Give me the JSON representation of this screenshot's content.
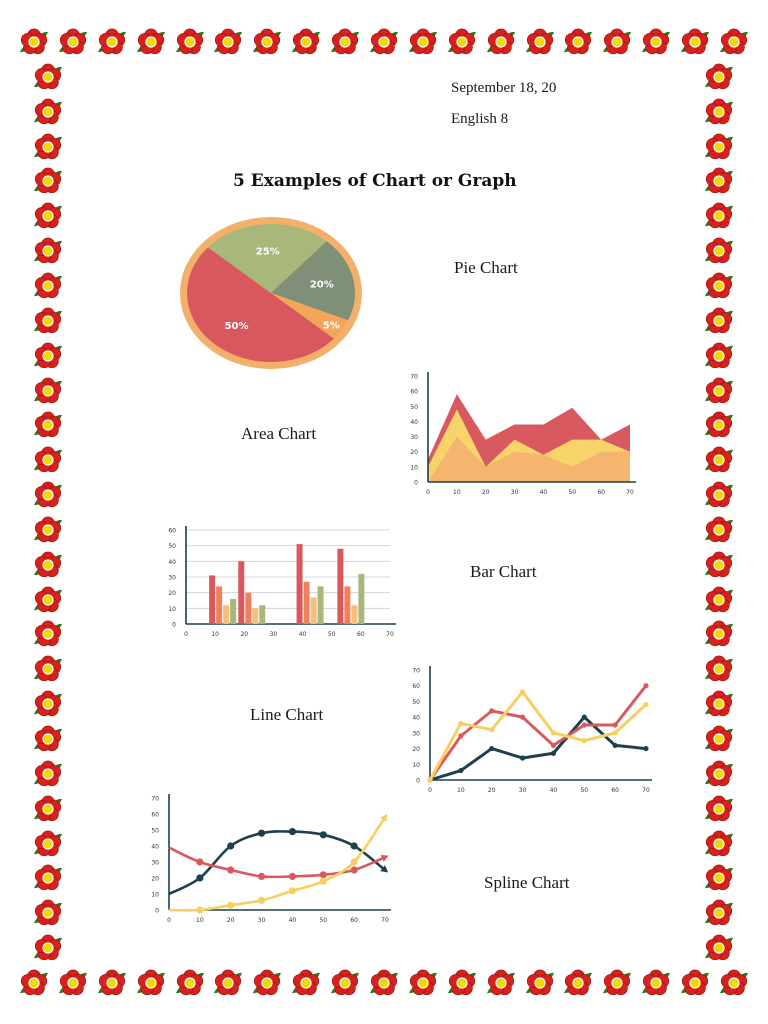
{
  "header": {
    "date": "September 18, 20",
    "course": "English 8",
    "title": "5 Examples of Chart or Graph"
  },
  "labels": {
    "pie": "Pie Chart",
    "area": "Area Chart",
    "bar": "Bar Chart",
    "line": "Line Chart",
    "spline": "Spline Chart"
  },
  "border": {
    "icon": "red-flower-icon",
    "petal_color": "#d8201c",
    "center_color": "#f5d800",
    "leaf_color": "#2f7a1f"
  },
  "chart_data": [
    {
      "type": "pie",
      "slices": [
        {
          "label": "50%",
          "value": 50,
          "color": "#d9585d"
        },
        {
          "label": "25%",
          "value": 25,
          "color": "#a7b87a"
        },
        {
          "label": "20%",
          "value": 20,
          "color": "#7f8f78"
        },
        {
          "label": "5%",
          "value": 5,
          "color": "#f5a55a"
        }
      ],
      "rim_color": "#f3b06a"
    },
    {
      "type": "area",
      "x": [
        0,
        10,
        20,
        30,
        40,
        50,
        60,
        70
      ],
      "ylim": [
        0,
        70
      ],
      "xticks": [
        "0",
        "10",
        "20",
        "30",
        "40",
        "50",
        "60",
        "70"
      ],
      "yticks": [
        "0",
        "10",
        "20",
        "30",
        "40",
        "50",
        "60",
        "70"
      ],
      "series": [
        {
          "color": "#d85a5f",
          "values": [
            15,
            58,
            28,
            38,
            38,
            49,
            28,
            38
          ]
        },
        {
          "color": "#f7d36a",
          "values": [
            10,
            48,
            10,
            28,
            18,
            28,
            28,
            20
          ]
        },
        {
          "color": "#f6b56e",
          "values": [
            0,
            30,
            10,
            20,
            18,
            10,
            20,
            20
          ]
        }
      ]
    },
    {
      "type": "bar",
      "categories": [
        "10",
        "20",
        "40",
        "50"
      ],
      "xticks": [
        "0",
        "10",
        "20",
        "30",
        "40",
        "50",
        "60",
        "70"
      ],
      "yticks": [
        "0",
        "10",
        "20",
        "30",
        "40",
        "50",
        "60"
      ],
      "ylim": [
        0,
        60
      ],
      "series": [
        {
          "color": "#d9585d",
          "values": [
            31,
            40,
            51,
            48
          ]
        },
        {
          "color": "#f07f5e",
          "values": [
            24,
            20,
            27,
            24
          ]
        },
        {
          "color": "#f7c07a",
          "values": [
            12,
            10,
            17,
            12
          ]
        },
        {
          "color": "#a7b87a",
          "values": [
            16,
            12,
            24,
            32
          ]
        }
      ]
    },
    {
      "type": "line",
      "x": [
        0,
        10,
        20,
        30,
        40,
        50,
        60,
        70
      ],
      "ylim": [
        0,
        70
      ],
      "xticks": [
        "0",
        "10",
        "20",
        "30",
        "40",
        "50",
        "60",
        "70"
      ],
      "yticks": [
        "0",
        "10",
        "20",
        "30",
        "40",
        "50",
        "60",
        "70"
      ],
      "series": [
        {
          "color": "#1f3e4e",
          "values": [
            0,
            6,
            20,
            14,
            17,
            40,
            22,
            20
          ]
        },
        {
          "color": "#d85a5f",
          "values": [
            0,
            28,
            44,
            40,
            22,
            35,
            35,
            60
          ]
        },
        {
          "color": "#f7cf5e",
          "values": [
            0,
            36,
            32,
            56,
            30,
            25,
            30,
            48
          ]
        }
      ]
    },
    {
      "type": "spline",
      "x": [
        0,
        10,
        20,
        30,
        40,
        50,
        60,
        70
      ],
      "ylim": [
        0,
        70
      ],
      "xticks": [
        "0",
        "10",
        "20",
        "30",
        "40",
        "50",
        "60",
        "70"
      ],
      "yticks": [
        "0",
        "10",
        "20",
        "30",
        "40",
        "50",
        "60",
        "70"
      ],
      "series": [
        {
          "color": "#1f3e4e",
          "values": [
            10,
            20,
            40,
            48,
            49,
            47,
            40,
            25
          ]
        },
        {
          "color": "#d85a5f",
          "values": [
            39,
            30,
            25,
            21,
            21,
            22,
            25,
            33
          ]
        },
        {
          "color": "#f7cf5e",
          "values": [
            0,
            0,
            3,
            6,
            12,
            18,
            30,
            58
          ]
        }
      ]
    }
  ]
}
